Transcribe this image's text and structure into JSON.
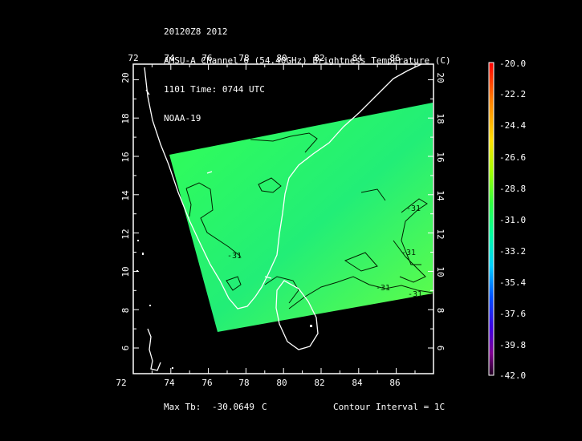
{
  "header": {
    "line1": "20120Z8 2012",
    "line2": "AMSU-A Channel 6 (54.40GHz) Brightness Temperature (C)",
    "line3": "1101 Time: 0744 UTC",
    "line4": "NOAA-19"
  },
  "map": {
    "lon_ticks": [
      "72",
      "74",
      "76",
      "78",
      "80",
      "82",
      "84",
      "86"
    ],
    "lat_ticks": [
      "6",
      "8",
      "10",
      "12",
      "14",
      "16",
      "18",
      "20"
    ],
    "contour_labels": [
      "-31",
      "-31",
      "-31",
      "-31",
      "-31"
    ]
  },
  "colorbar": {
    "labels": [
      "-20.0",
      "-22.2",
      "-24.4",
      "-26.6",
      "-28.8",
      "-31.0",
      "-33.2",
      "-35.4",
      "-37.6",
      "-39.8",
      "-42.0"
    ],
    "colors": [
      "#ff0000",
      "#ff7a00",
      "#ffd400",
      "#c8ff00",
      "#40ff40",
      "#00ff99",
      "#00d8ff",
      "#0060ff",
      "#3000ff",
      "#8000c0",
      "#000000"
    ]
  },
  "footer": {
    "max_label": "Max Tb:",
    "max_value": "-30.0649",
    "max_unit": "C",
    "contour_interval": "Contour Interval = 1C"
  }
}
